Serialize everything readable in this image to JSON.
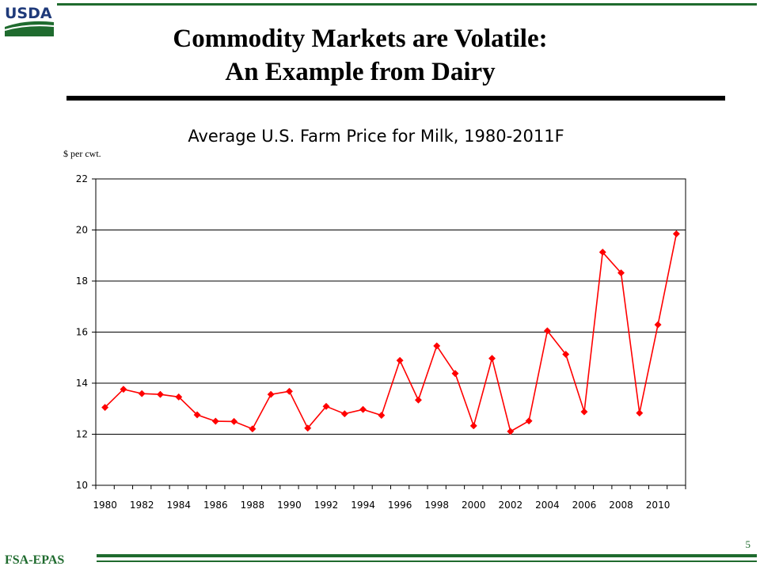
{
  "logo": {
    "text": "USDA",
    "colors": {
      "text": "#1f3a7a",
      "field": "#1f6b2e"
    }
  },
  "slide": {
    "title_line1": "Commodity Markets are Volatile:",
    "title_line2": "An Example from Dairy",
    "footer_label": "FSA-EPAS",
    "page_number": "5"
  },
  "colors": {
    "accent": "#1f6b2e",
    "series": "#ff0000"
  },
  "chart_data": {
    "type": "line",
    "title": "Average U.S. Farm Price for Milk, 1980-2011F",
    "ylabel": "$ per cwt.",
    "xlabel": "",
    "ylim": [
      10,
      22
    ],
    "yticks": [
      10,
      12,
      14,
      16,
      18,
      20,
      22
    ],
    "xticks": [
      "1980",
      "1982",
      "1984",
      "1986",
      "1988",
      "1990",
      "1992",
      "1994",
      "1996",
      "1998",
      "2000",
      "2002",
      "2004",
      "2006",
      "2008",
      "2010"
    ],
    "grid": "horizontal",
    "legend": "none",
    "series": [
      {
        "x": [
          1980,
          1981,
          1982,
          1983,
          1984,
          1985,
          1986,
          1987,
          1988,
          1989,
          1990,
          1991,
          1992,
          1993,
          1994,
          1995,
          1996,
          1997,
          1998,
          1999,
          2000,
          2001,
          2002,
          2003,
          2004,
          2005,
          2006,
          2007,
          2008,
          2009,
          2010,
          2011
        ],
        "values": [
          13.05,
          13.76,
          13.59,
          13.56,
          13.46,
          12.76,
          12.51,
          12.5,
          12.21,
          13.56,
          13.68,
          12.24,
          13.09,
          12.8,
          12.97,
          12.74,
          14.89,
          13.34,
          15.46,
          14.38,
          12.33,
          14.97,
          12.11,
          12.52,
          16.05,
          15.13,
          12.88,
          19.13,
          18.32,
          12.83,
          16.29,
          19.85
        ]
      }
    ]
  }
}
